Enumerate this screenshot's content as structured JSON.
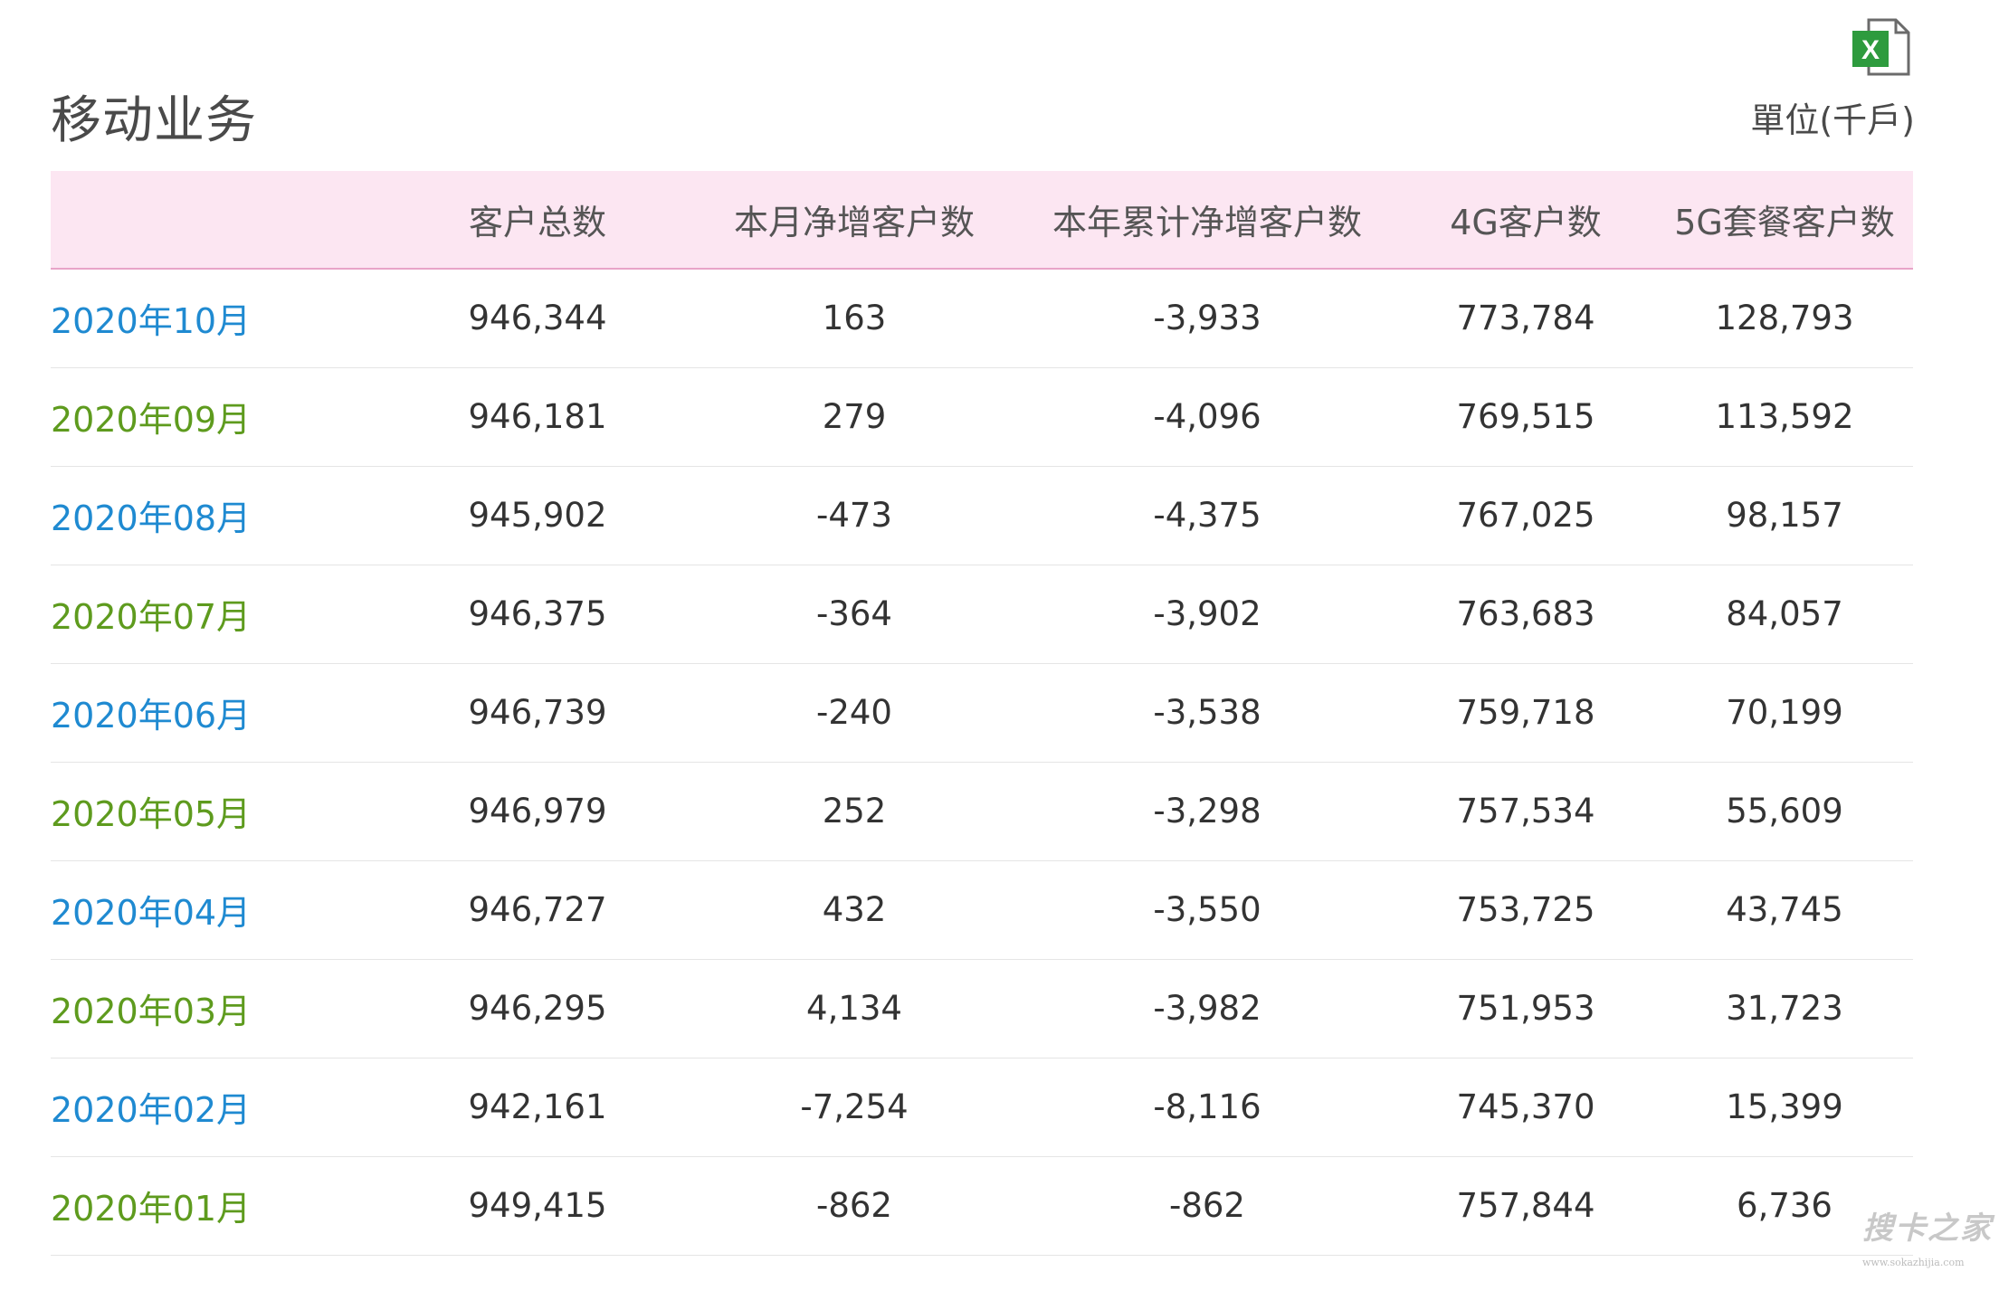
{
  "page": {
    "title": "移动业务",
    "unit": "單位(千戶)",
    "export_icon": "excel-icon"
  },
  "table": {
    "columns": [
      "",
      "客户总数",
      "本月净增客户数",
      "本年累计净增客户数",
      "4G客户数",
      "5G套餐客户数"
    ],
    "rows": [
      {
        "month": "2020年10月",
        "total": "946,344",
        "monthly_net": "163",
        "ytd_net": "-3,933",
        "g4": "773,784",
        "g5": "128,793",
        "color": "blue"
      },
      {
        "month": "2020年09月",
        "total": "946,181",
        "monthly_net": "279",
        "ytd_net": "-4,096",
        "g4": "769,515",
        "g5": "113,592",
        "color": "green"
      },
      {
        "month": "2020年08月",
        "total": "945,902",
        "monthly_net": "-473",
        "ytd_net": "-4,375",
        "g4": "767,025",
        "g5": "98,157",
        "color": "blue"
      },
      {
        "month": "2020年07月",
        "total": "946,375",
        "monthly_net": "-364",
        "ytd_net": "-3,902",
        "g4": "763,683",
        "g5": "84,057",
        "color": "green"
      },
      {
        "month": "2020年06月",
        "total": "946,739",
        "monthly_net": "-240",
        "ytd_net": "-3,538",
        "g4": "759,718",
        "g5": "70,199",
        "color": "blue"
      },
      {
        "month": "2020年05月",
        "total": "946,979",
        "monthly_net": "252",
        "ytd_net": "-3,298",
        "g4": "757,534",
        "g5": "55,609",
        "color": "green"
      },
      {
        "month": "2020年04月",
        "total": "946,727",
        "monthly_net": "432",
        "ytd_net": "-3,550",
        "g4": "753,725",
        "g5": "43,745",
        "color": "blue"
      },
      {
        "month": "2020年03月",
        "total": "946,295",
        "monthly_net": "4,134",
        "ytd_net": "-3,982",
        "g4": "751,953",
        "g5": "31,723",
        "color": "green"
      },
      {
        "month": "2020年02月",
        "total": "942,161",
        "monthly_net": "-7,254",
        "ytd_net": "-8,116",
        "g4": "745,370",
        "g5": "15,399",
        "color": "blue"
      },
      {
        "month": "2020年01月",
        "total": "949,415",
        "monthly_net": "-862",
        "ytd_net": "-862",
        "g4": "757,844",
        "g5": "6,736",
        "color": "green"
      }
    ]
  },
  "watermark": {
    "text": "搜卡之家",
    "url": "www.sokazhijia.com"
  },
  "colors": {
    "header_bg": "#fce6f2",
    "link_blue": "#1f8ad1",
    "link_green": "#5e9b1e"
  }
}
